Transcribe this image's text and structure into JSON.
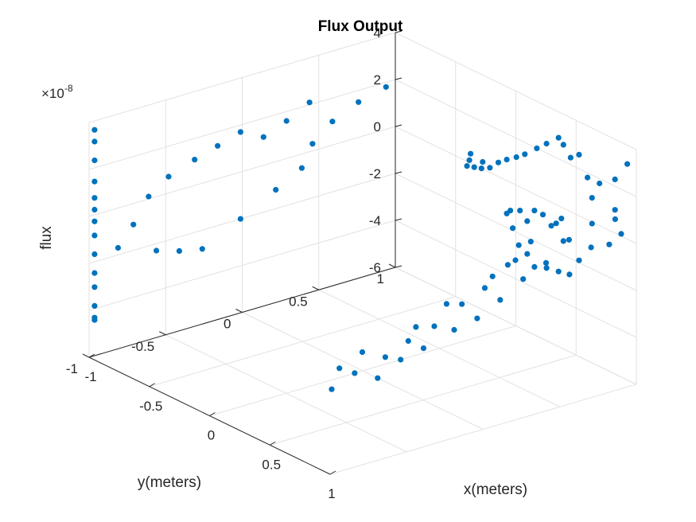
{
  "chart_data": {
    "type": "scatter",
    "projection": "3d",
    "title": "Flux Output",
    "xlabel": "x(meters)",
    "ylabel": "y(meters)",
    "zlabel": "flux",
    "z_exponent_label": "×10",
    "z_exponent_power": "-8",
    "xlim": [
      -1,
      1
    ],
    "ylim": [
      -1,
      1
    ],
    "zlim": [
      -6,
      4
    ],
    "z_units_scale": 1e-08,
    "x_ticks": [
      "-1",
      "-0.5",
      "0",
      "0.5",
      "1"
    ],
    "y_ticks": [
      "-1",
      "-0.5",
      "0",
      "0.5",
      "1"
    ],
    "z_ticks": [
      "-6",
      "-4",
      "-2",
      "0",
      "2",
      "4"
    ],
    "grid": true,
    "marker_color": "#0072bd",
    "points": [
      [
        -0.35,
        0.98,
        0.5
      ],
      [
        -0.25,
        0.98,
        0.4
      ],
      [
        -0.19,
        0.98,
        0.3
      ],
      [
        -0.26,
        0.98,
        0.1
      ],
      [
        -0.32,
        0.98,
        0.0
      ],
      [
        -0.12,
        0.98,
        0.7
      ],
      [
        -0.05,
        0.98,
        1.0
      ],
      [
        0.03,
        0.98,
        1.3
      ],
      [
        0.1,
        0.98,
        1.6
      ],
      [
        0.2,
        0.98,
        2.1
      ],
      [
        0.28,
        0.98,
        2.5
      ],
      [
        0.38,
        0.98,
        3.0
      ],
      [
        0.42,
        0.98,
        2.8
      ],
      [
        0.48,
        0.98,
        2.4
      ],
      [
        0.55,
        0.98,
        2.7
      ],
      [
        0.62,
        0.98,
        1.9
      ],
      [
        0.72,
        0.98,
        1.9
      ],
      [
        0.85,
        0.98,
        0.7
      ],
      [
        0.9,
        0.98,
        0.2
      ],
      [
        0.8,
        0.98,
        -0.5
      ],
      [
        0.65,
        0.98,
        -1.0
      ],
      [
        0.55,
        0.98,
        -1.8
      ],
      [
        0.47,
        0.98,
        -2.6
      ],
      [
        0.38,
        0.98,
        -2.7
      ],
      [
        0.28,
        0.98,
        -2.8
      ],
      [
        0.18,
        0.98,
        -3.0
      ],
      [
        0.12,
        0.98,
        -2.6
      ],
      [
        0.05,
        0.98,
        -2.4
      ],
      [
        0.0,
        0.98,
        -1.8
      ],
      [
        -0.05,
        0.98,
        -1.3
      ],
      [
        -0.02,
        0.98,
        -1.1
      ],
      [
        0.06,
        0.98,
        -0.9
      ],
      [
        0.12,
        0.98,
        -1.2
      ],
      [
        0.18,
        0.98,
        -0.6
      ],
      [
        0.25,
        0.98,
        -0.6
      ],
      [
        0.32,
        0.98,
        -0.9
      ],
      [
        0.36,
        0.98,
        -0.7
      ],
      [
        0.42,
        0.98,
        -1.3
      ],
      [
        -0.36,
        0.98,
        0.2
      ],
      [
        -0.38,
        0.98,
        -0.1
      ],
      [
        -0.95,
        -0.6,
        -2.1
      ],
      [
        -0.95,
        -0.45,
        -2.4
      ],
      [
        -0.95,
        -0.3,
        -2.6
      ],
      [
        -0.95,
        -0.05,
        -1.8
      ],
      [
        -0.95,
        0.18,
        -1.0
      ],
      [
        -0.95,
        0.35,
        -0.4
      ],
      [
        -0.95,
        0.42,
        0.5
      ],
      [
        -0.95,
        0.55,
        1.2
      ],
      [
        -0.95,
        0.72,
        1.7
      ],
      [
        -0.95,
        0.9,
        2.0
      ],
      [
        -0.95,
        -0.85,
        -1.5
      ],
      [
        -0.95,
        -0.75,
        -0.7
      ],
      [
        -0.95,
        -0.65,
        0.3
      ],
      [
        -0.95,
        -0.52,
        0.9
      ],
      [
        -0.95,
        -0.35,
        1.3
      ],
      [
        -0.95,
        -0.2,
        1.6
      ],
      [
        -0.95,
        -0.05,
        1.9
      ],
      [
        -0.95,
        0.1,
        1.4
      ],
      [
        -0.95,
        0.25,
        1.8
      ],
      [
        -0.95,
        0.4,
        2.3
      ],
      [
        0.95,
        -0.9,
        -1.8
      ],
      [
        0.95,
        -0.75,
        -1.4
      ],
      [
        0.95,
        -0.6,
        -1.9
      ],
      [
        0.95,
        -0.45,
        -1.5
      ],
      [
        0.95,
        -0.28,
        -1.2
      ],
      [
        0.95,
        -0.1,
        -0.6
      ],
      [
        0.95,
        0.05,
        -0.2
      ],
      [
        0.95,
        0.2,
        0.5
      ],
      [
        0.95,
        0.35,
        1.2
      ],
      [
        0.95,
        0.55,
        1.8
      ],
      [
        0.95,
        0.75,
        2.3
      ],
      [
        0.95,
        0.9,
        2.8
      ],
      [
        0.95,
        0.98,
        3.3
      ],
      [
        0.95,
        -0.95,
        -2.6
      ],
      [
        0.95,
        -0.8,
        -2.2
      ],
      [
        0.95,
        -0.65,
        -2.7
      ],
      [
        0.95,
        -0.5,
        -2.2
      ],
      [
        0.95,
        -0.35,
        -2.0
      ],
      [
        0.95,
        -0.15,
        -1.6
      ],
      [
        0.95,
        0.0,
        -1.4
      ],
      [
        0.95,
        0.15,
        -0.9
      ],
      [
        0.95,
        0.3,
        -0.3
      ],
      [
        0.95,
        0.45,
        0.1
      ],
      [
        0.95,
        0.6,
        0.8
      ],
      [
        0.95,
        0.75,
        1.2
      ],
      [
        0.95,
        0.9,
        1.5
      ],
      [
        0.95,
        -0.4,
        -1.0
      ],
      [
        0.95,
        -0.2,
        -0.4
      ],
      [
        0.95,
        0.1,
        0.2
      ],
      [
        0.95,
        0.25,
        0.6
      ],
      [
        -0.98,
        -0.98,
        3.7
      ],
      [
        -0.98,
        -0.98,
        3.2
      ],
      [
        -0.98,
        -0.98,
        2.4
      ],
      [
        -0.98,
        -0.98,
        1.5
      ],
      [
        -0.98,
        -0.98,
        0.8
      ],
      [
        -0.98,
        -0.98,
        0.3
      ],
      [
        -0.98,
        -0.98,
        -0.2
      ],
      [
        -0.98,
        -0.98,
        -0.8
      ],
      [
        -0.98,
        -0.98,
        -1.6
      ],
      [
        -0.98,
        -0.98,
        -2.4
      ],
      [
        -0.98,
        -0.98,
        -3.0
      ],
      [
        -0.98,
        -0.98,
        -3.8
      ],
      [
        -0.98,
        -0.98,
        -4.3
      ],
      [
        -0.98,
        -0.98,
        -4.4
      ]
    ]
  }
}
